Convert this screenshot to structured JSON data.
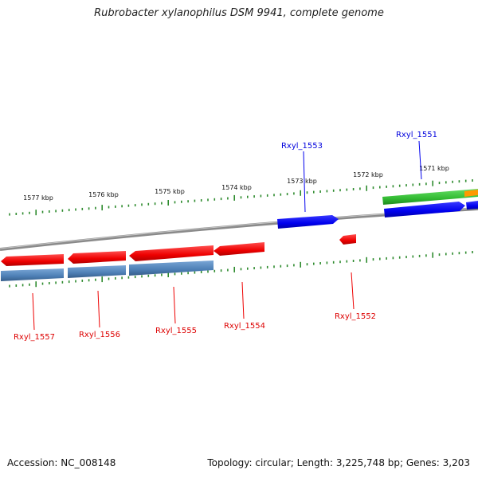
{
  "title": "Rubrobacter xylanophilus DSM 9941, complete genome",
  "accession": "Accession: NC_008148",
  "topology": "Topology: circular; Length: 3,225,748 bp; Genes: 3,203",
  "colors": {
    "backbone": "#8a8a8a",
    "tick": "#2e8b2e",
    "forward_gene": "#0000ee",
    "reverse_gene": "#ee0000",
    "forward_cds": "#33bb33",
    "reverse_cds": "#4d7fb5",
    "orange_feature": "#ff9900"
  },
  "ruler_labels": [
    "1577 kbp",
    "1576 kbp",
    "1575 kbp",
    "1574 kbp",
    "1573 kbp",
    "1572 kbp",
    "1571 kbp"
  ],
  "gene_labels": {
    "top": [
      "Rxyl_1553",
      "Rxyl_1551"
    ],
    "bottom": [
      "Rxyl_1557",
      "Rxyl_1556",
      "Rxyl_1555",
      "Rxyl_1554",
      "Rxyl_1552"
    ]
  }
}
